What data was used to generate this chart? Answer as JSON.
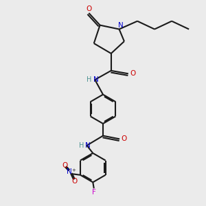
{
  "bg_color": "#ebebeb",
  "bond_color": "#1a1a1a",
  "O_color": "#cc0000",
  "N_color": "#0000cc",
  "F_color": "#cc00cc",
  "H_color": "#4a9090",
  "lw": 1.5,
  "figsize": [
    3.0,
    3.0
  ],
  "dpi": 100,
  "xlim": [
    0,
    10
  ],
  "ylim": [
    0,
    10
  ]
}
